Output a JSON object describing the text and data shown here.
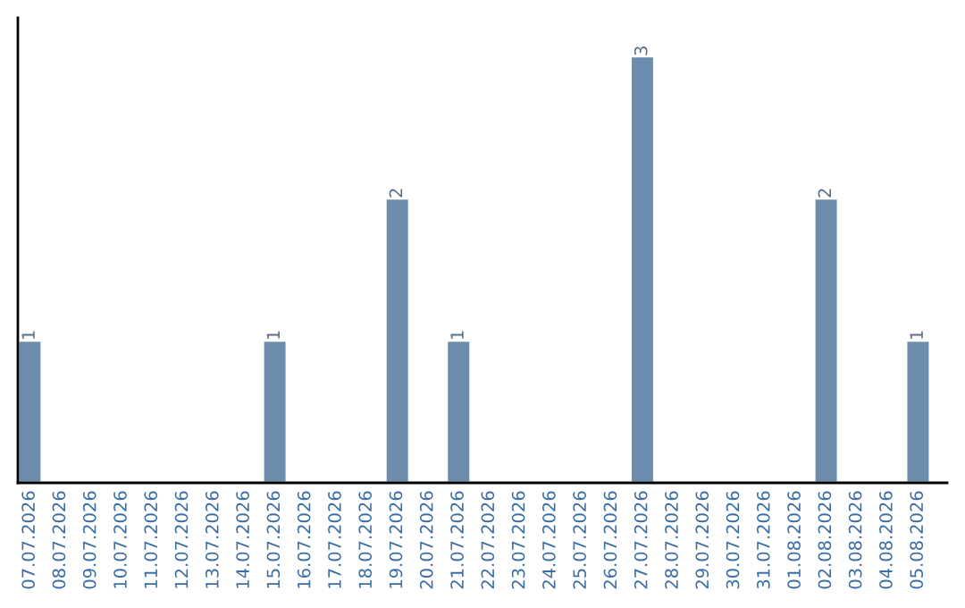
{
  "chart_data": {
    "type": "bar",
    "categories": [
      "07.07.2026",
      "08.07.2026",
      "09.07.2026",
      "10.07.2026",
      "11.07.2026",
      "12.07.2026",
      "13.07.2026",
      "14.07.2026",
      "15.07.2026",
      "16.07.2026",
      "17.07.2026",
      "18.07.2026",
      "19.07.2026",
      "20.07.2026",
      "21.07.2026",
      "22.07.2026",
      "23.07.2026",
      "24.07.2026",
      "25.07.2026",
      "26.07.2026",
      "27.07.2026",
      "28.07.2026",
      "29.07.2026",
      "30.07.2026",
      "31.07.2026",
      "01.08.2026",
      "02.08.2026",
      "03.08.2026",
      "04.08.2026",
      "05.08.2026"
    ],
    "values": [
      1,
      0,
      0,
      0,
      0,
      0,
      0,
      0,
      1,
      0,
      0,
      0,
      2,
      0,
      1,
      0,
      0,
      0,
      0,
      0,
      3,
      0,
      0,
      0,
      0,
      0,
      2,
      0,
      0,
      1
    ],
    "value_labels": [
      "1",
      null,
      null,
      null,
      null,
      null,
      null,
      null,
      "1",
      null,
      null,
      null,
      "2",
      null,
      "1",
      null,
      null,
      null,
      null,
      null,
      "3",
      null,
      null,
      null,
      null,
      null,
      "2",
      null,
      null,
      "1"
    ],
    "color": "#6b8cab",
    "grid": false,
    "legend": false,
    "tick_labels": "x"
  }
}
